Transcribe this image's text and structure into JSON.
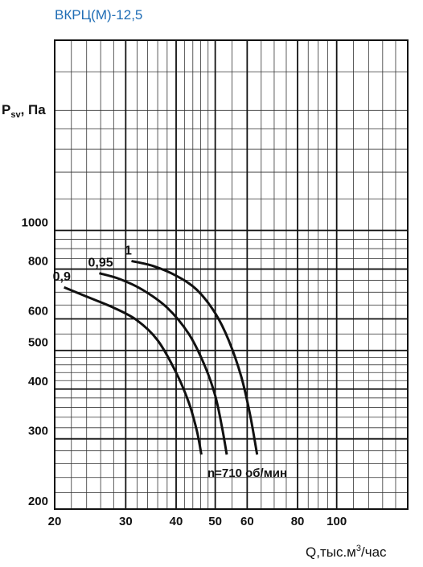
{
  "chart_data": {
    "type": "line",
    "title": "ВКРЦ(М)-12,5",
    "x_label": {
      "main": "Q,тыс.м",
      "sup": "3",
      "rest": "/час"
    },
    "y_label": {
      "main": "P",
      "sub": "sv",
      "rest": ", Па"
    },
    "annotation": "n=710 об/мин",
    "log_x": true,
    "log_y": true,
    "grid": true,
    "color": "#111111",
    "xlim": [
      20,
      150
    ],
    "ylim": [
      200,
      3000
    ],
    "xticks": [
      20,
      30,
      40,
      50,
      60,
      80,
      100
    ],
    "yticks": [
      200,
      300,
      400,
      500,
      600,
      800,
      1000
    ],
    "x_minor_grid": [
      22,
      24,
      26,
      28,
      32,
      34,
      36,
      38,
      42,
      44,
      46,
      48,
      55,
      65,
      70,
      75,
      85,
      90,
      95,
      110,
      120,
      130,
      140,
      150
    ],
    "y_minor_grid": [
      220,
      240,
      260,
      280,
      320,
      340,
      360,
      380,
      420,
      440,
      460,
      480,
      550,
      650,
      700,
      750,
      850,
      900,
      950,
      1200,
      1400,
      1600,
      1800,
      2000,
      2500,
      3000
    ],
    "series": [
      {
        "name": "0,9",
        "x": [
          21.1,
          24.2,
          28,
          32,
          36,
          40,
          43,
          45,
          46.2
        ],
        "values": [
          720,
          680,
          640,
          595,
          530,
          440,
          370,
          315,
          274
        ]
      },
      {
        "name": "0,95",
        "x": [
          25.8,
          29,
          33,
          38,
          43,
          47,
          50,
          52,
          53.4
        ],
        "values": [
          781,
          755,
          710,
          640,
          550,
          460,
          385,
          320,
          274
        ]
      },
      {
        "name": "1",
        "x": [
          31,
          35,
          40,
          45,
          50,
          54,
          58,
          61,
          63.5
        ],
        "values": [
          838,
          815,
          770,
          710,
          620,
          530,
          430,
          345,
          274
        ]
      }
    ]
  }
}
